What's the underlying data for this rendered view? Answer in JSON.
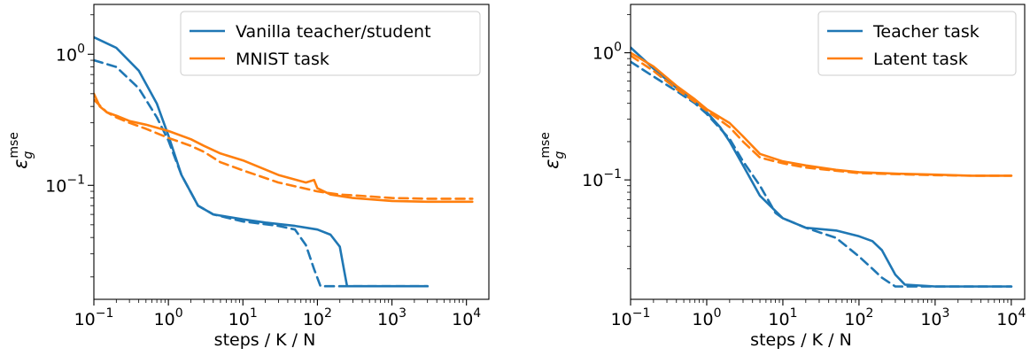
{
  "chart_data": [
    {
      "type": "line",
      "xlabel": "steps / K / N",
      "ylabel_symbol": "ε",
      "ylabel_sub": "g",
      "ylabel_sup": "mse",
      "x_scale": "log",
      "y_scale": "log",
      "xlim": [
        0.1,
        20000
      ],
      "ylim": [
        0.0135,
        2.4
      ],
      "x_ticks": [
        {
          "value": 0.1,
          "base": "10",
          "exp": "−1"
        },
        {
          "value": 1,
          "base": "10",
          "exp": "0"
        },
        {
          "value": 10,
          "base": "10",
          "exp": "1"
        },
        {
          "value": 100,
          "base": "10",
          "exp": "2"
        },
        {
          "value": 1000,
          "base": "10",
          "exp": "3"
        },
        {
          "value": 10000,
          "base": "10",
          "exp": "4"
        }
      ],
      "y_ticks": [
        {
          "value": 1,
          "base": "10",
          "exp": "0"
        },
        {
          "value": 0.1,
          "base": "10",
          "exp": "−1"
        }
      ],
      "grid": false,
      "legend_position": "top-right",
      "series": [
        {
          "name": "Vanilla teacher/student",
          "color": "#1f77b4",
          "dash": false,
          "x": [
            0.1,
            0.2,
            0.4,
            0.7,
            1,
            1.5,
            2.5,
            4,
            10,
            20,
            50,
            100,
            150,
            200,
            230,
            250,
            400,
            1000,
            3000
          ],
          "y": [
            1.35,
            1.12,
            0.75,
            0.42,
            0.24,
            0.12,
            0.07,
            0.06,
            0.055,
            0.052,
            0.049,
            0.046,
            0.042,
            0.034,
            0.022,
            0.017,
            0.017,
            0.017,
            0.017
          ]
        },
        {
          "name": "Vanilla teacher/student (dashed)",
          "color": "#1f77b4",
          "dash": true,
          "x": [
            0.1,
            0.2,
            0.4,
            0.7,
            1,
            1.5,
            2.5,
            4,
            10,
            30,
            50,
            70,
            90,
            110,
            150,
            400,
            1000,
            3000
          ],
          "y": [
            0.9,
            0.8,
            0.55,
            0.33,
            0.22,
            0.12,
            0.07,
            0.06,
            0.053,
            0.049,
            0.046,
            0.035,
            0.023,
            0.017,
            0.017,
            0.017,
            0.017,
            0.017
          ]
        },
        {
          "name": "MNIST task",
          "color": "#ff7f0e",
          "dash": false,
          "x": [
            0.1,
            0.12,
            0.15,
            0.2,
            0.3,
            0.5,
            1,
            2,
            3,
            5,
            10,
            30,
            70,
            90,
            100,
            150,
            300,
            1000,
            3000,
            12000
          ],
          "y": [
            0.5,
            0.4,
            0.36,
            0.34,
            0.31,
            0.29,
            0.26,
            0.225,
            0.2,
            0.175,
            0.155,
            0.12,
            0.105,
            0.11,
            0.095,
            0.085,
            0.08,
            0.076,
            0.075,
            0.075
          ]
        },
        {
          "name": "MNIST task (dashed)",
          "color": "#ff7f0e",
          "dash": true,
          "x": [
            0.1,
            0.15,
            0.2,
            0.3,
            0.5,
            1,
            2,
            3,
            5,
            10,
            30,
            100,
            200,
            300,
            1000,
            3000,
            12000
          ],
          "y": [
            0.45,
            0.36,
            0.33,
            0.3,
            0.27,
            0.23,
            0.2,
            0.18,
            0.15,
            0.13,
            0.105,
            0.09,
            0.085,
            0.084,
            0.08,
            0.079,
            0.079
          ]
        }
      ],
      "legend": [
        {
          "label": "Vanilla teacher/student",
          "color": "#1f77b4"
        },
        {
          "label": "MNIST task",
          "color": "#ff7f0e"
        }
      ]
    },
    {
      "type": "line",
      "xlabel": "steps / K / N",
      "ylabel_symbol": "ε",
      "ylabel_sub": "g",
      "ylabel_sup": "mse",
      "x_scale": "log",
      "y_scale": "log",
      "xlim": [
        0.1,
        15000
      ],
      "ylim": [
        0.0115,
        2.4
      ],
      "x_ticks": [
        {
          "value": 0.1,
          "base": "10",
          "exp": "−1"
        },
        {
          "value": 1,
          "base": "10",
          "exp": "0"
        },
        {
          "value": 10,
          "base": "10",
          "exp": "1"
        },
        {
          "value": 100,
          "base": "10",
          "exp": "2"
        },
        {
          "value": 1000,
          "base": "10",
          "exp": "3"
        },
        {
          "value": 10000,
          "base": "10",
          "exp": "4"
        }
      ],
      "y_ticks": [
        {
          "value": 1,
          "base": "10",
          "exp": "0"
        },
        {
          "value": 0.1,
          "base": "10",
          "exp": "−1"
        }
      ],
      "grid": false,
      "legend_position": "top-right",
      "series": [
        {
          "name": "Teacher task",
          "color": "#1f77b4",
          "dash": false,
          "x": [
            0.1,
            0.2,
            0.4,
            0.7,
            1,
            1.5,
            2,
            3,
            5,
            10,
            20,
            50,
            100,
            150,
            200,
            300,
            400,
            1000,
            3000,
            10000
          ],
          "y": [
            1.1,
            0.75,
            0.53,
            0.42,
            0.34,
            0.26,
            0.2,
            0.13,
            0.075,
            0.05,
            0.042,
            0.04,
            0.036,
            0.033,
            0.028,
            0.018,
            0.015,
            0.0145,
            0.0145,
            0.0145
          ]
        },
        {
          "name": "Teacher task (dashed)",
          "color": "#1f77b4",
          "dash": true,
          "x": [
            0.1,
            0.2,
            0.4,
            0.7,
            1,
            2,
            3,
            5,
            8,
            10,
            20,
            50,
            100,
            150,
            200,
            300,
            1000,
            3000,
            10000
          ],
          "y": [
            0.85,
            0.65,
            0.5,
            0.4,
            0.33,
            0.21,
            0.14,
            0.09,
            0.055,
            0.05,
            0.042,
            0.035,
            0.025,
            0.02,
            0.017,
            0.0145,
            0.0145,
            0.0145,
            0.0145
          ]
        },
        {
          "name": "Latent task",
          "color": "#ff7f0e",
          "dash": false,
          "x": [
            0.1,
            0.2,
            0.4,
            0.7,
            1,
            2,
            3,
            5,
            10,
            20,
            50,
            100,
            300,
            1000,
            3000,
            10000
          ],
          "y": [
            1.0,
            0.78,
            0.55,
            0.43,
            0.36,
            0.28,
            0.22,
            0.16,
            0.14,
            0.13,
            0.12,
            0.115,
            0.112,
            0.11,
            0.108,
            0.108
          ]
        },
        {
          "name": "Latent task (dashed)",
          "color": "#ff7f0e",
          "dash": true,
          "x": [
            0.1,
            0.2,
            0.4,
            0.7,
            1,
            2,
            3,
            5,
            10,
            20,
            50,
            100,
            300,
            1000,
            3000,
            10000
          ],
          "y": [
            0.95,
            0.72,
            0.52,
            0.41,
            0.35,
            0.26,
            0.2,
            0.15,
            0.135,
            0.125,
            0.118,
            0.113,
            0.111,
            0.109,
            0.108,
            0.108
          ]
        }
      ],
      "legend": [
        {
          "label": "Teacher task",
          "color": "#1f77b4"
        },
        {
          "label": "Latent task",
          "color": "#ff7f0e"
        }
      ]
    }
  ]
}
